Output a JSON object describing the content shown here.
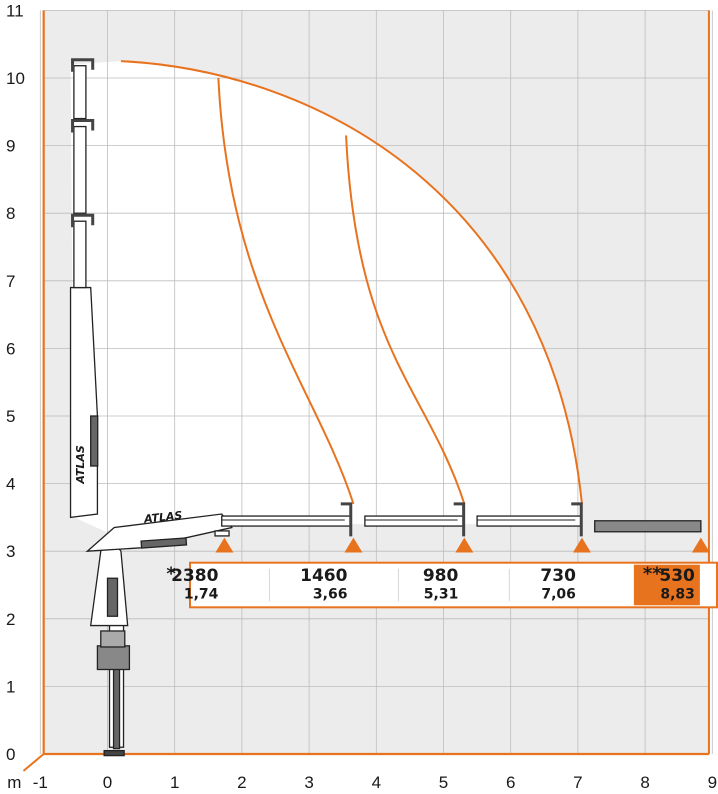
{
  "chart_data": {
    "type": "diagram",
    "xlim": [
      -1,
      9
    ],
    "ylim": [
      0,
      11
    ],
    "x_unit": "m",
    "x_ticks": [
      "-1",
      "0",
      "1",
      "2",
      "3",
      "4",
      "5",
      "6",
      "7",
      "8",
      "9"
    ],
    "y_ticks": [
      "0",
      "1",
      "2",
      "3",
      "4",
      "5",
      "6",
      "7",
      "8",
      "9",
      "10",
      "11"
    ],
    "grid": true,
    "brand": "ATLAS",
    "load_points": [
      {
        "prefix": "*",
        "load": "2380",
        "reach": "1,74",
        "x": 1.74,
        "highlight": false
      },
      {
        "prefix": "",
        "load": "1460",
        "reach": "3,66",
        "x": 3.66,
        "highlight": false
      },
      {
        "prefix": "",
        "load": "980",
        "reach": "5,31",
        "x": 5.31,
        "highlight": false
      },
      {
        "prefix": "",
        "load": "730",
        "reach": "7,06",
        "x": 7.06,
        "highlight": false
      },
      {
        "prefix": "**",
        "load": "530",
        "reach": "8,83",
        "x": 8.83,
        "highlight": true
      }
    ],
    "envelope_peak": [
      0.2,
      10.25
    ],
    "envelope_end": [
      7.06,
      3.7
    ],
    "jib_arcs": [
      {
        "from": [
          1.65,
          10.0
        ],
        "to": [
          3.66,
          3.7
        ]
      },
      {
        "from": [
          3.55,
          9.15
        ],
        "to": [
          5.31,
          3.7
        ]
      }
    ]
  },
  "colors": {
    "accent": "#e8731f",
    "background": "#ececec",
    "grid": "#bdbdbd",
    "crane": "#555555"
  }
}
